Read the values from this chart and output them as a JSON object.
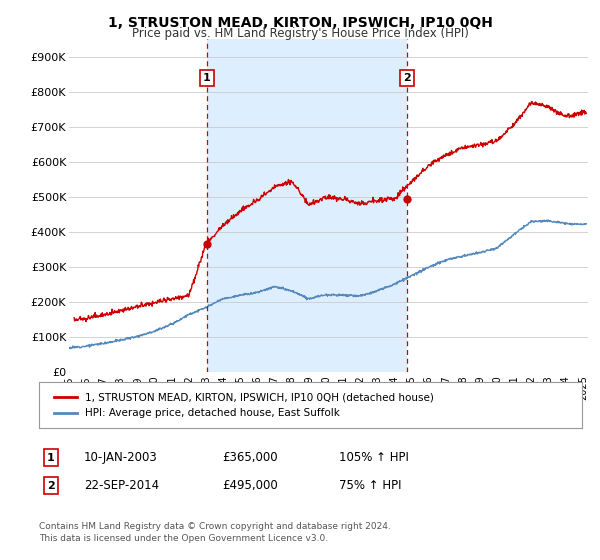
{
  "title": "1, STRUSTON MEAD, KIRTON, IPSWICH, IP10 0QH",
  "subtitle": "Price paid vs. HM Land Registry's House Price Index (HPI)",
  "ylim": [
    0,
    950000
  ],
  "yticks": [
    0,
    100000,
    200000,
    300000,
    400000,
    500000,
    600000,
    700000,
    800000,
    900000
  ],
  "ytick_labels": [
    "£0",
    "£100K",
    "£200K",
    "£300K",
    "£400K",
    "£500K",
    "£600K",
    "£700K",
    "£800K",
    "£900K"
  ],
  "sale1_date_num": 2003.05,
  "sale1_price": 365000,
  "sale1_label": "1",
  "sale1_date_str": "10-JAN-2003",
  "sale1_price_str": "£365,000",
  "sale1_hpi_str": "105% ↑ HPI",
  "sale2_date_num": 2014.72,
  "sale2_price": 495000,
  "sale2_label": "2",
  "sale2_date_str": "22-SEP-2014",
  "sale2_price_str": "£495,000",
  "sale2_hpi_str": "75% ↑ HPI",
  "red_line_color": "#cc0000",
  "blue_line_color": "#5588bb",
  "dashed_line_color": "#cc0000",
  "shade_color": "#ddeeff",
  "grid_color": "#cccccc",
  "background_color": "#ffffff",
  "legend_label_red": "1, STRUSTON MEAD, KIRTON, IPSWICH, IP10 0QH (detached house)",
  "legend_label_blue": "HPI: Average price, detached house, East Suffolk",
  "footer1": "Contains HM Land Registry data © Crown copyright and database right 2024.",
  "footer2": "This data is licensed under the Open Government Licence v3.0.",
  "xmin": 1995.0,
  "xmax": 2025.3,
  "hpi_base": {
    "1995": 70000,
    "1996": 75000,
    "1997": 83000,
    "1998": 92000,
    "1999": 103000,
    "2000": 118000,
    "2001": 138000,
    "2002": 165000,
    "2003": 185000,
    "2004": 210000,
    "2005": 220000,
    "2006": 228000,
    "2007": 245000,
    "2008": 232000,
    "2009": 210000,
    "2010": 222000,
    "2011": 220000,
    "2012": 218000,
    "2013": 232000,
    "2014": 252000,
    "2015": 275000,
    "2016": 300000,
    "2017": 320000,
    "2018": 332000,
    "2019": 342000,
    "2020": 355000,
    "2021": 395000,
    "2022": 430000,
    "2023": 432000,
    "2024": 425000,
    "2025": 422000
  },
  "red_base": {
    "1995": 150000,
    "1996": 155000,
    "1997": 165000,
    "1998": 175000,
    "1999": 188000,
    "2000": 200000,
    "2001": 210000,
    "2002": 220000,
    "2003": 365000,
    "2004": 420000,
    "2005": 460000,
    "2006": 490000,
    "2007": 530000,
    "2008": 545000,
    "2009": 480000,
    "2010": 500000,
    "2011": 495000,
    "2012": 480000,
    "2013": 490000,
    "2014": 495000,
    "2015": 545000,
    "2016": 590000,
    "2017": 620000,
    "2018": 640000,
    "2019": 650000,
    "2020": 660000,
    "2021": 710000,
    "2022": 770000,
    "2023": 755000,
    "2024": 730000,
    "2025": 740000
  }
}
